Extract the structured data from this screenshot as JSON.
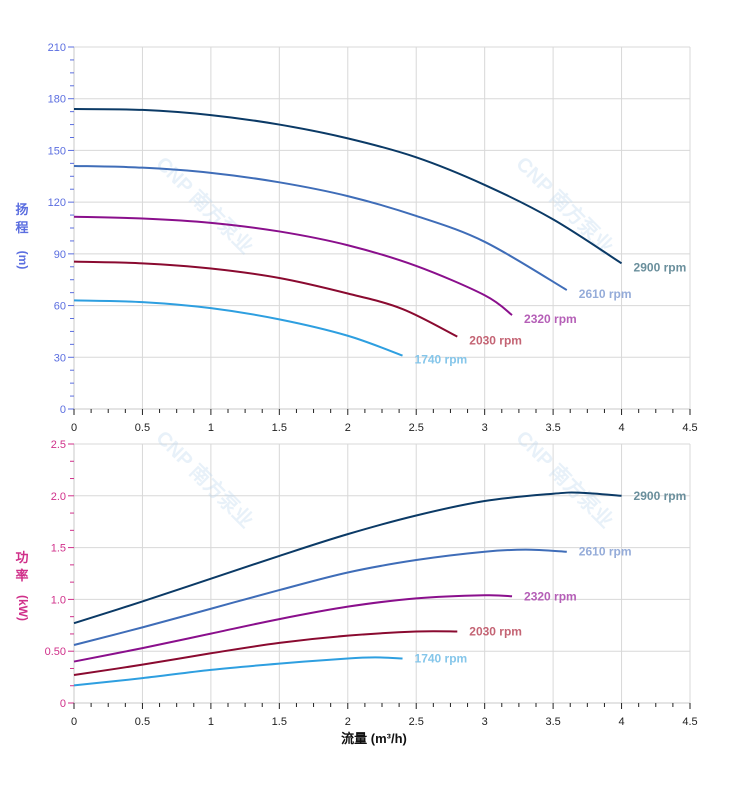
{
  "watermark": "CNP 南方泵业",
  "chart_data": [
    {
      "type": "line",
      "ylabel": "扬程 (m)",
      "ylabel_chars": [
        "扬",
        "程",
        "(m)"
      ],
      "xlim": [
        0,
        4.5
      ],
      "ylim": [
        0,
        210
      ],
      "xticks": [
        "0",
        "0.5",
        "1",
        "1.5",
        "2",
        "2.5",
        "3",
        "3.5",
        "4",
        "4.5"
      ],
      "yticks": [
        "0",
        "30",
        "60",
        "90",
        "120",
        "150",
        "180",
        "210"
      ],
      "grid": true,
      "axis_color": "#5b6ee0",
      "series": [
        {
          "name": "2900 rpm",
          "color": "#0b3a66",
          "label_color": "#6a8f9c",
          "x": [
            0,
            0.5,
            1,
            1.5,
            2,
            2.5,
            3,
            3.5,
            4
          ],
          "y": [
            174,
            173.5,
            170.5,
            165,
            157,
            146,
            130,
            110,
            84.5
          ]
        },
        {
          "name": "2610 rpm",
          "color": "#3f6db8",
          "label_color": "#95acd9",
          "x": [
            0,
            0.5,
            1,
            1.5,
            2,
            2.5,
            3,
            3.6
          ],
          "y": [
            141,
            140,
            137,
            131.5,
            123.5,
            112,
            97,
            69
          ]
        },
        {
          "name": "2320 rpm",
          "color": "#8a0f8c",
          "label_color": "#b55fb7",
          "x": [
            0,
            0.5,
            1,
            1.5,
            2,
            2.5,
            3,
            3.2
          ],
          "y": [
            111.5,
            110.5,
            108,
            103,
            95,
            83,
            66,
            54.5
          ]
        },
        {
          "name": "2030 rpm",
          "color": "#8a0a30",
          "label_color": "#c46474",
          "x": [
            0,
            0.5,
            1,
            1.5,
            2,
            2.4,
            2.8
          ],
          "y": [
            85.5,
            84.5,
            81.5,
            76,
            67,
            58,
            42
          ]
        },
        {
          "name": "1740 rpm",
          "color": "#2e9fe0",
          "label_color": "#85c6ea",
          "x": [
            0,
            0.5,
            1,
            1.5,
            2,
            2.4
          ],
          "y": [
            63,
            62,
            58.5,
            52,
            42.5,
            31
          ]
        }
      ]
    },
    {
      "type": "line",
      "xlabel": "流量 (m³/h)",
      "ylabel": "功率 (kW)",
      "ylabel_chars": [
        "功",
        "率",
        "(kW)"
      ],
      "xlim": [
        0,
        4.5
      ],
      "ylim": [
        0,
        2.5
      ],
      "xticks": [
        "0",
        "0.5",
        "1",
        "1.5",
        "2",
        "2.5",
        "3",
        "3.5",
        "4",
        "4.5"
      ],
      "yticks": [
        "0",
        "0.50",
        "1.0",
        "1.5",
        "2.0",
        "2.5"
      ],
      "grid": true,
      "axis_color": "#d0308a",
      "series": [
        {
          "name": "2900 rpm",
          "color": "#0b3a66",
          "label_color": "#6a8f9c",
          "x": [
            0,
            0.5,
            1,
            1.5,
            2,
            2.5,
            3,
            3.5,
            3.7,
            4
          ],
          "y": [
            0.77,
            0.98,
            1.2,
            1.42,
            1.63,
            1.81,
            1.95,
            2.02,
            2.03,
            2.0
          ]
        },
        {
          "name": "2610 rpm",
          "color": "#3f6db8",
          "label_color": "#95acd9",
          "x": [
            0,
            0.5,
            1,
            1.5,
            2,
            2.5,
            3,
            3.3,
            3.6
          ],
          "y": [
            0.56,
            0.73,
            0.91,
            1.09,
            1.26,
            1.38,
            1.46,
            1.48,
            1.46
          ]
        },
        {
          "name": "2320 rpm",
          "color": "#8a0f8c",
          "label_color": "#b55fb7",
          "x": [
            0,
            0.5,
            1,
            1.5,
            2,
            2.5,
            3,
            3.2
          ],
          "y": [
            0.4,
            0.53,
            0.67,
            0.81,
            0.93,
            1.01,
            1.04,
            1.03
          ]
        },
        {
          "name": "2030 rpm",
          "color": "#8a0a30",
          "label_color": "#c46474",
          "x": [
            0,
            0.5,
            1,
            1.5,
            2,
            2.5,
            2.8
          ],
          "y": [
            0.27,
            0.37,
            0.48,
            0.58,
            0.65,
            0.69,
            0.69
          ]
        },
        {
          "name": "1740 rpm",
          "color": "#2e9fe0",
          "label_color": "#85c6ea",
          "x": [
            0,
            0.5,
            1,
            1.5,
            2,
            2.2,
            2.4
          ],
          "y": [
            0.17,
            0.24,
            0.32,
            0.38,
            0.43,
            0.44,
            0.43
          ]
        }
      ]
    }
  ]
}
